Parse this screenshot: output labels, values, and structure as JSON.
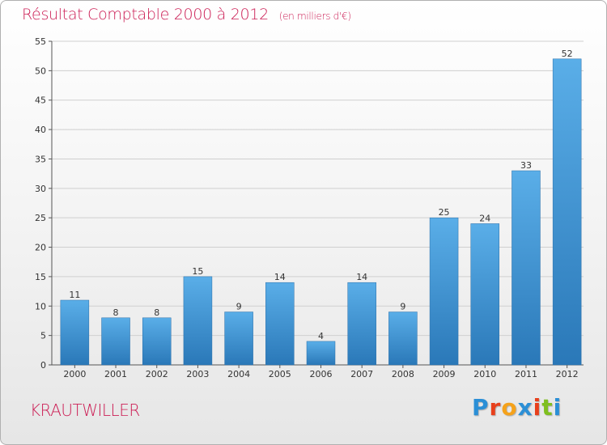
{
  "title": "Résultat Comptable 2000 à 2012",
  "subtitle": "(en milliers d'€)",
  "commune": "KRAUTWILLER",
  "logo": {
    "letters": [
      "P",
      "r",
      "o",
      "x",
      "i",
      "t",
      "i"
    ],
    "colors": [
      "#2b8fd6",
      "#e8401c",
      "#f5a21b",
      "#2b8fd6",
      "#e8401c",
      "#7fbf1f",
      "#2b8fd6"
    ]
  },
  "colors": {
    "accent": "#cc1e55",
    "bar_top": "#5aaee8",
    "bar_bottom": "#2a78b8",
    "grid": "#cfcfcf"
  },
  "chart_data": {
    "type": "bar",
    "title": "Résultat Comptable 2000 à 2012",
    "subtitle": "(en milliers d'€)",
    "categories": [
      "2000",
      "2001",
      "2002",
      "2003",
      "2004",
      "2005",
      "2006",
      "2007",
      "2008",
      "2009",
      "2010",
      "2011",
      "2012"
    ],
    "values": [
      11,
      8,
      8,
      15,
      9,
      14,
      4,
      14,
      9,
      25,
      24,
      33,
      52
    ],
    "ylim": [
      0,
      55
    ],
    "yticks": [
      0,
      5,
      10,
      15,
      20,
      25,
      30,
      35,
      40,
      45,
      50,
      55
    ],
    "grid": true,
    "xlabel": "",
    "ylabel": ""
  }
}
